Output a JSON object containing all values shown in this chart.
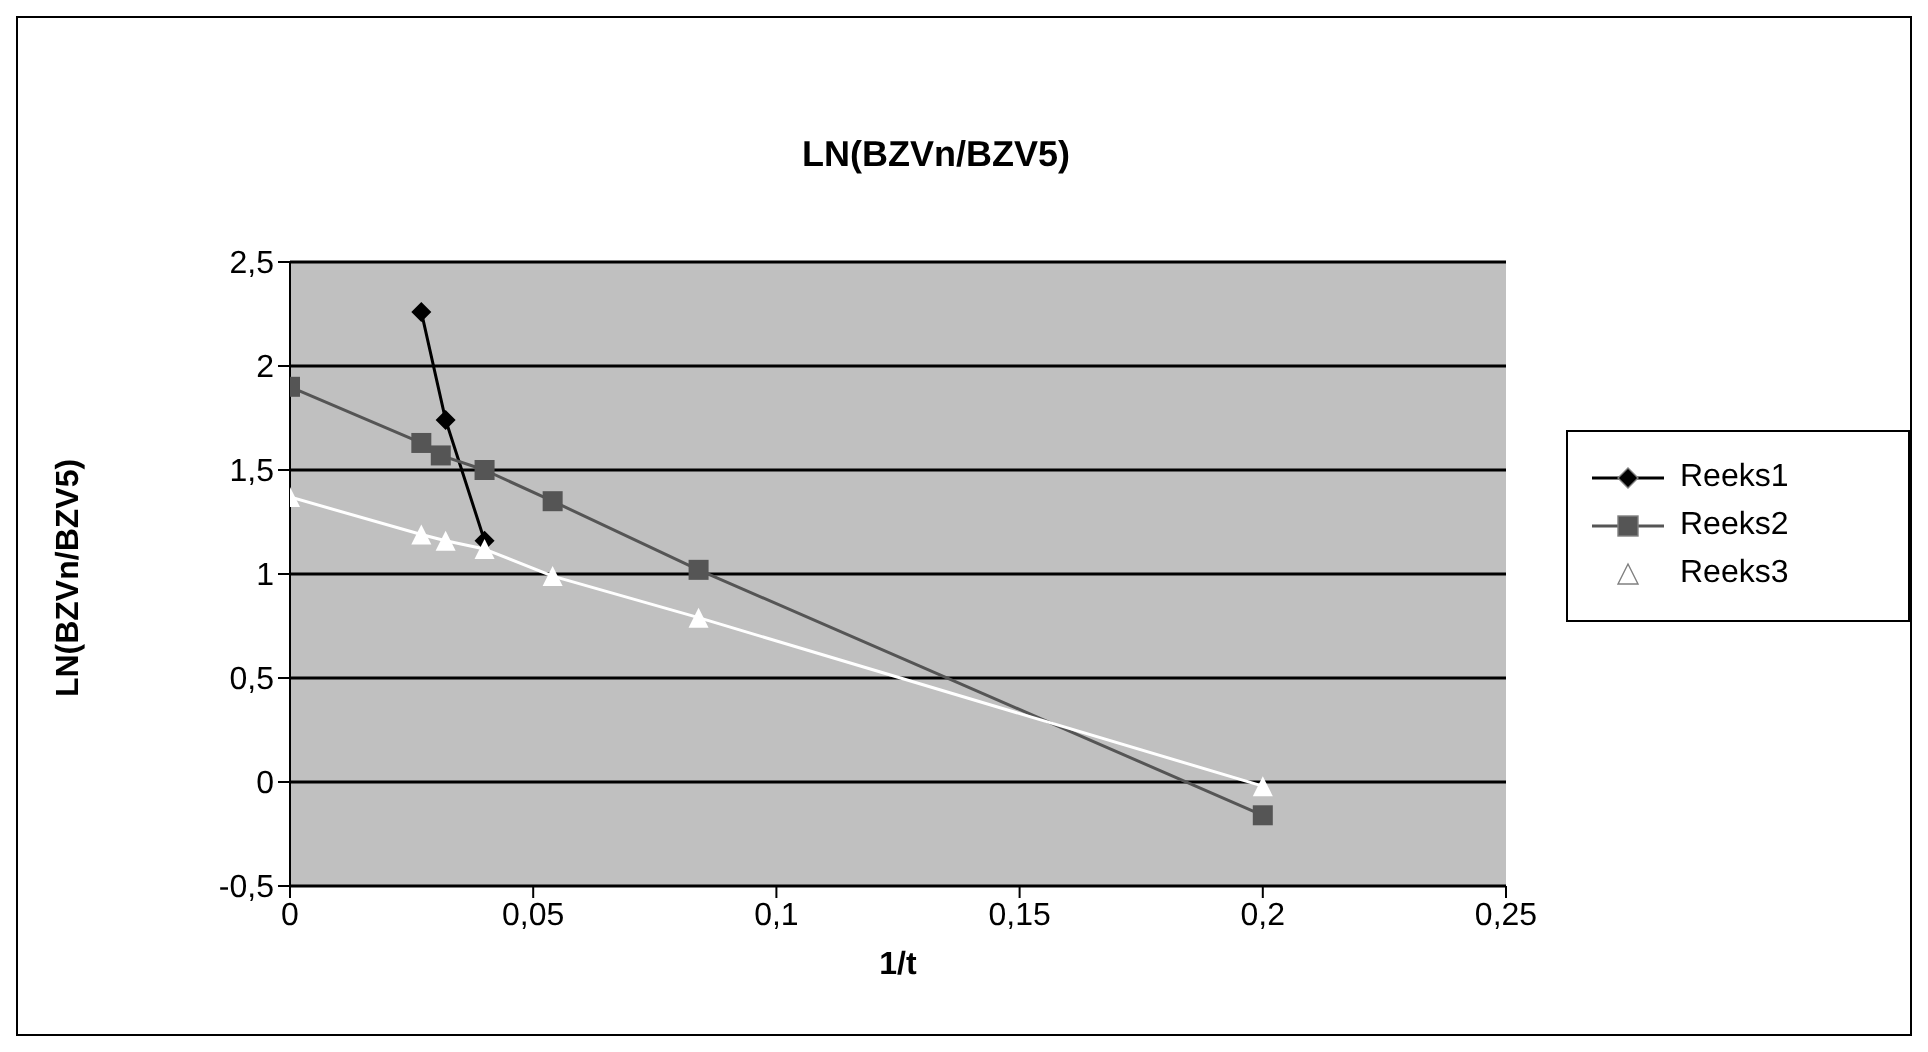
{
  "chart_data": {
    "type": "line",
    "title": "LN(BZVn/BZV5)",
    "xlabel": "1/t",
    "ylabel": "LN(BZVn/BZV5)",
    "xlim": [
      0,
      0.25
    ],
    "xticks": [
      0,
      {
        "value": 0.05,
        "label": "0,05"
      },
      {
        "value": 0.1,
        "label": "0,1"
      },
      {
        "value": 0.15,
        "label": "0,15"
      },
      {
        "value": 0.2,
        "label": "0,2"
      },
      {
        "value": 0.25,
        "label": "0,25"
      }
    ],
    "ylim": [
      -0.5,
      2.5
    ],
    "yticks": [
      {
        "value": -0.5,
        "label": "-0,5"
      },
      0,
      {
        "value": 0.5,
        "label": "0,5"
      },
      1,
      {
        "value": 1.5,
        "label": "1,5"
      },
      2,
      {
        "value": 2.5,
        "label": "2,5"
      }
    ],
    "grid": "y",
    "legend": "right",
    "line_style": "solid",
    "series": [
      {
        "name": "Reeks1",
        "color": "#000000",
        "marker": "diamond",
        "x": [
          0.027,
          0.032,
          0.04
        ],
        "values": [
          2.26,
          1.74,
          1.16
        ]
      },
      {
        "name": "Reeks2",
        "color": "#555555",
        "marker": "square",
        "x": [
          0,
          0.027,
          0.031,
          0.04,
          0.054,
          0.084,
          0.2
        ],
        "values": [
          1.9,
          1.63,
          1.57,
          1.5,
          1.35,
          1.02,
          -0.16
        ]
      },
      {
        "name": "Reeks3",
        "color": "#ffffff",
        "marker": "triangle",
        "x": [
          0,
          0.027,
          0.032,
          0.04,
          0.054,
          0.084,
          0.2
        ],
        "values": [
          1.37,
          1.19,
          1.16,
          1.12,
          0.99,
          0.79,
          -0.02
        ]
      }
    ]
  }
}
